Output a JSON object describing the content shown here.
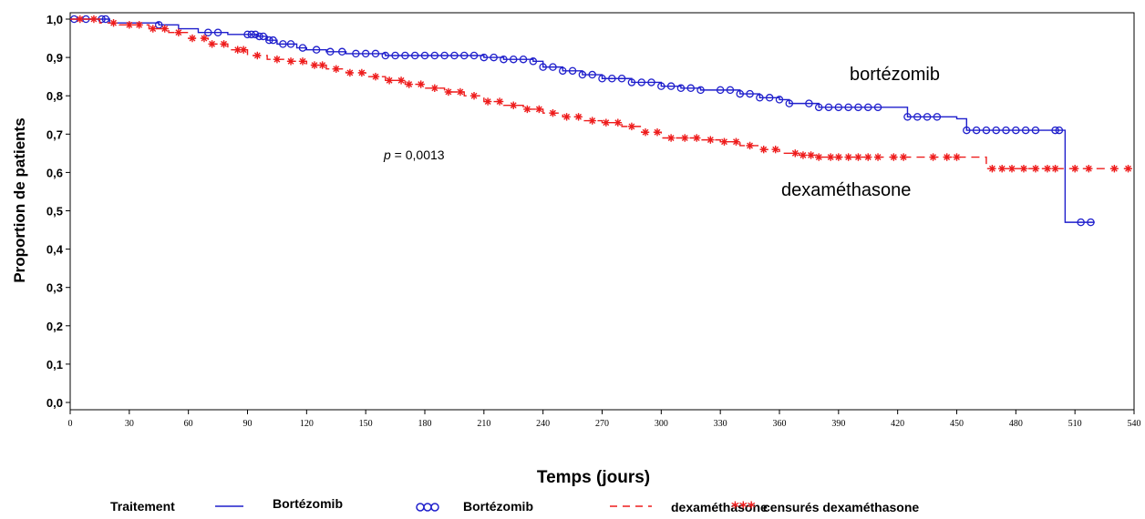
{
  "chart_data": {
    "type": "line",
    "title": "",
    "xlabel": "Temps (jours)",
    "ylabel": "Proportion de patients",
    "xlim": [
      0,
      540
    ],
    "ylim": [
      0,
      1
    ],
    "x_ticks": [
      0,
      30,
      60,
      90,
      120,
      150,
      180,
      210,
      240,
      270,
      300,
      330,
      360,
      390,
      420,
      450,
      480,
      510,
      540
    ],
    "x_tick_labels": [
      "0",
      "30",
      "60",
      "90",
      "120",
      "150",
      "180",
      "210",
      "240",
      "270",
      "300",
      "330",
      "360",
      "390",
      "420",
      "450",
      "480",
      "510",
      "540"
    ],
    "y_ticks": [
      0,
      0.1,
      0.2,
      0.3,
      0.4,
      0.5,
      0.6,
      0.7,
      0.8,
      0.9,
      1.0
    ],
    "y_tick_labels": [
      "0,0",
      "0,1",
      "0,2",
      "0,3",
      "0,4",
      "0,5",
      "0,6",
      "0,7",
      "0,8",
      "0,9",
      "1,0"
    ],
    "grid": false,
    "legend_position": "bottom",
    "annotations": [
      {
        "text": "bortézomib",
        "x": 400,
        "y": 0.86
      },
      {
        "text": "dexaméthasone",
        "x": 380,
        "y": 0.55
      },
      {
        "text": "p = 0,0013",
        "x": 150,
        "y": 0.645
      }
    ],
    "legend": {
      "title": "Traitement",
      "entries": [
        "Bortézomib",
        "Bortézomib",
        "dexaméthasone",
        "censurés dexaméthasone"
      ]
    },
    "series": [
      {
        "name": "Bortézomib",
        "color": "#1f1fcc",
        "line_style": "solid",
        "censor_marker": "circle",
        "x": [
          0,
          20,
          45,
          55,
          65,
          80,
          95,
          100,
          105,
          115,
          120,
          130,
          140,
          160,
          205,
          210,
          220,
          235,
          240,
          250,
          260,
          270,
          285,
          300,
          310,
          320,
          340,
          350,
          360,
          365,
          380,
          420,
          425,
          450,
          455,
          470,
          500,
          505,
          510,
          520
        ],
        "y": [
          1.0,
          0.99,
          0.985,
          0.975,
          0.965,
          0.96,
          0.955,
          0.945,
          0.935,
          0.925,
          0.92,
          0.915,
          0.91,
          0.905,
          0.905,
          0.9,
          0.895,
          0.89,
          0.875,
          0.865,
          0.855,
          0.845,
          0.835,
          0.825,
          0.82,
          0.815,
          0.805,
          0.795,
          0.79,
          0.78,
          0.77,
          0.77,
          0.745,
          0.74,
          0.71,
          0.71,
          0.71,
          0.47,
          0.47,
          0.47
        ],
        "censored_x": [
          2,
          8,
          16,
          18,
          45,
          70,
          75,
          90,
          92,
          94,
          96,
          98,
          101,
          103,
          108,
          112,
          118,
          125,
          132,
          138,
          145,
          150,
          155,
          160,
          165,
          170,
          175,
          180,
          185,
          190,
          195,
          200,
          205,
          210,
          215,
          220,
          225,
          230,
          235,
          240,
          245,
          250,
          255,
          260,
          265,
          270,
          275,
          280,
          285,
          290,
          295,
          300,
          305,
          310,
          315,
          320,
          330,
          335,
          340,
          345,
          350,
          355,
          360,
          365,
          375,
          380,
          385,
          390,
          395,
          400,
          405,
          410,
          425,
          430,
          435,
          440,
          455,
          460,
          465,
          470,
          475,
          480,
          485,
          490,
          500,
          502,
          513,
          518
        ]
      },
      {
        "name": "dexaméthasone",
        "color": "#ee1c1c",
        "line_style": "dashed",
        "censor_marker": "star",
        "x": [
          0,
          15,
          25,
          40,
          50,
          60,
          70,
          80,
          90,
          100,
          110,
          120,
          130,
          140,
          150,
          160,
          170,
          180,
          190,
          200,
          210,
          220,
          230,
          240,
          250,
          260,
          270,
          280,
          290,
          300,
          320,
          330,
          340,
          350,
          360,
          370,
          380,
          420,
          460,
          465,
          540
        ],
        "y": [
          1.0,
          0.99,
          0.985,
          0.975,
          0.965,
          0.95,
          0.935,
          0.92,
          0.905,
          0.895,
          0.89,
          0.88,
          0.87,
          0.86,
          0.85,
          0.84,
          0.83,
          0.82,
          0.81,
          0.8,
          0.785,
          0.775,
          0.765,
          0.755,
          0.745,
          0.735,
          0.73,
          0.72,
          0.705,
          0.69,
          0.685,
          0.68,
          0.67,
          0.66,
          0.65,
          0.645,
          0.64,
          0.64,
          0.64,
          0.61,
          0.61
        ],
        "censored_x": [
          5,
          12,
          22,
          30,
          35,
          42,
          48,
          55,
          62,
          68,
          72,
          78,
          85,
          88,
          95,
          105,
          112,
          118,
          124,
          128,
          135,
          142,
          148,
          155,
          162,
          168,
          172,
          178,
          185,
          192,
          198,
          205,
          212,
          218,
          225,
          232,
          238,
          245,
          252,
          258,
          265,
          272,
          278,
          285,
          292,
          298,
          305,
          312,
          318,
          325,
          332,
          338,
          345,
          352,
          358,
          368,
          372,
          376,
          380,
          386,
          390,
          395,
          400,
          405,
          410,
          418,
          423,
          438,
          445,
          450,
          468,
          473,
          478,
          484,
          490,
          496,
          500,
          510,
          517,
          530,
          537
        ]
      }
    ]
  }
}
